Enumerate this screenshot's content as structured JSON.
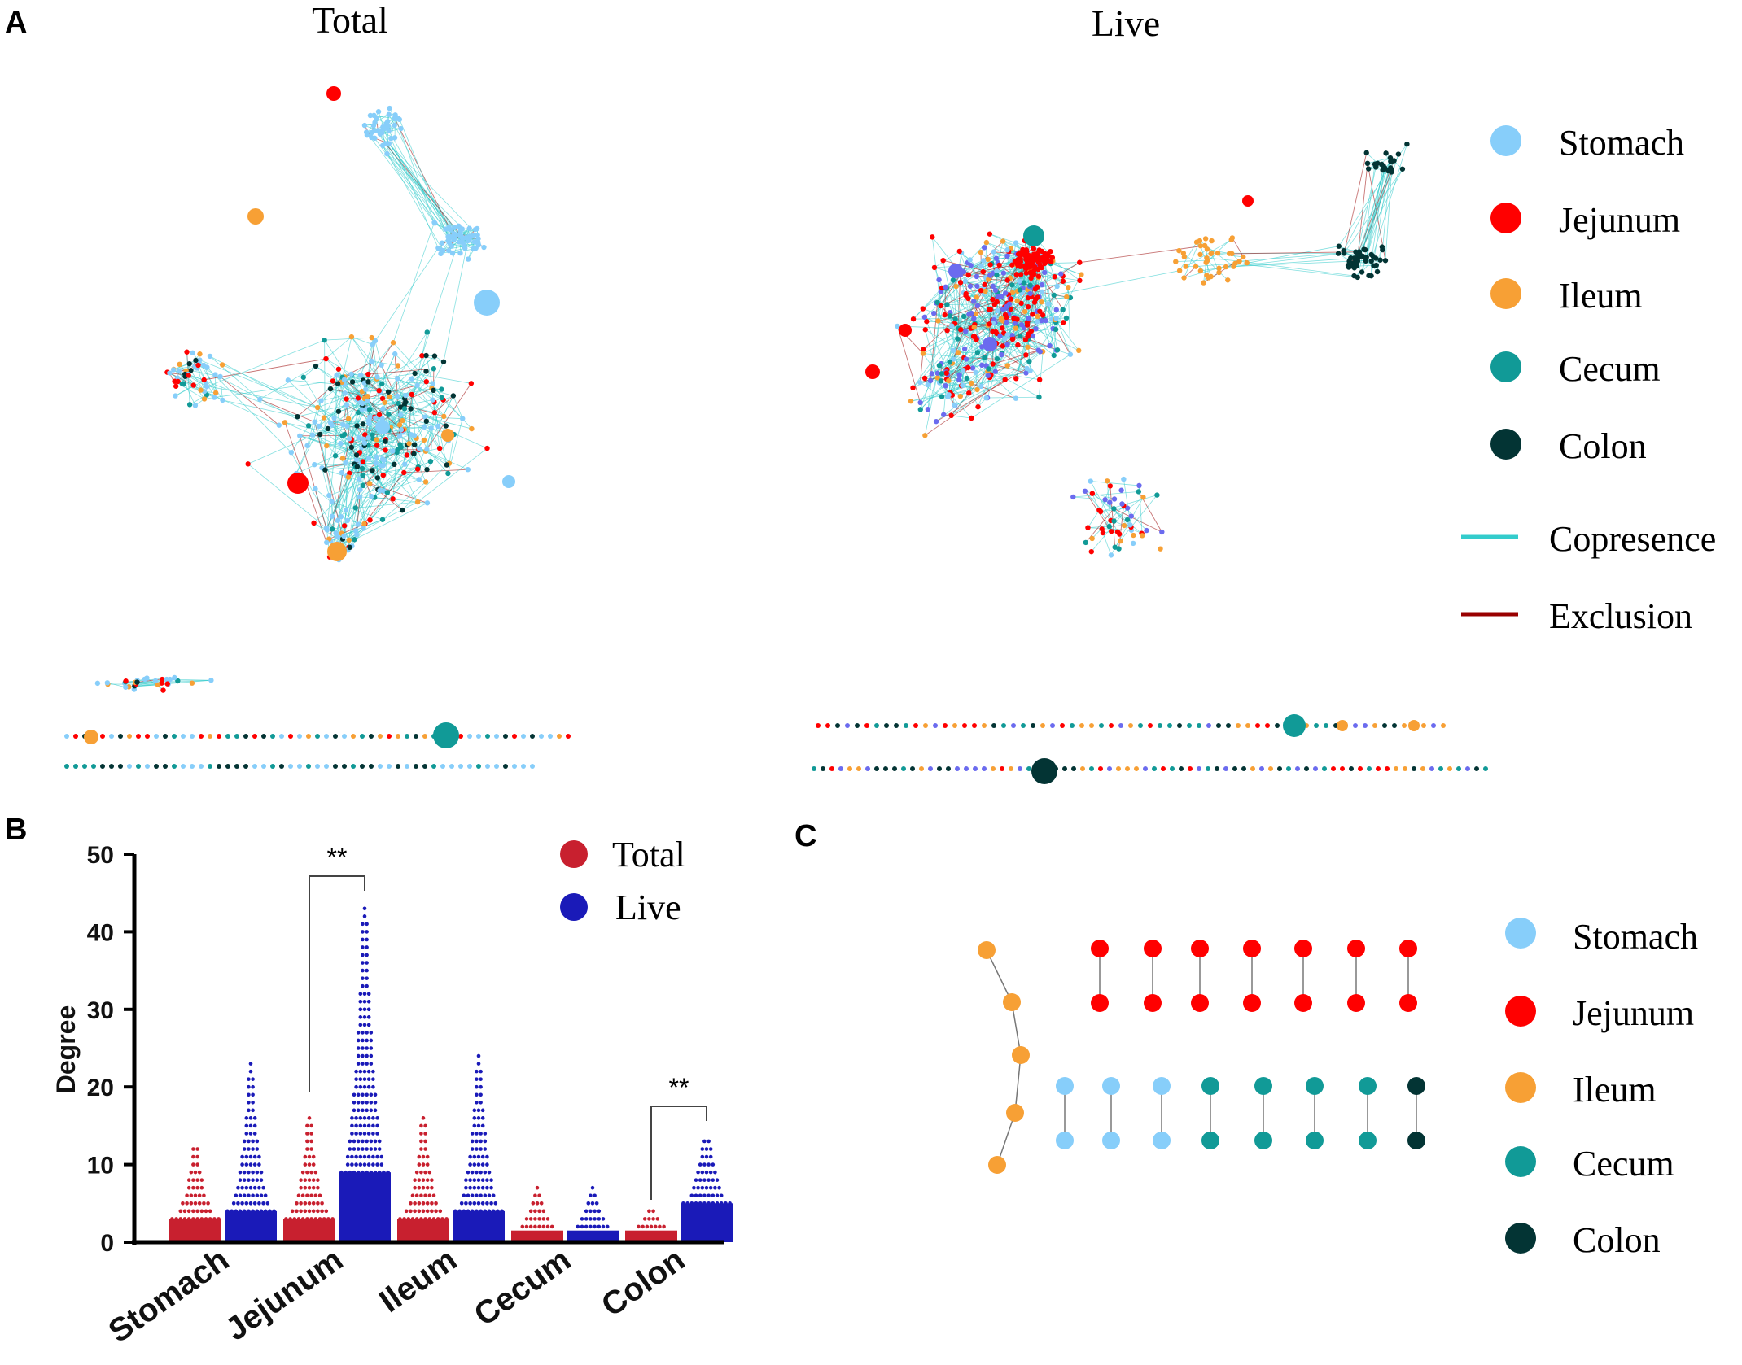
{
  "panels": {
    "a_letter": "A",
    "b_letter": "B",
    "c_letter": "C"
  },
  "network_titles": {
    "total": "Total",
    "live": "Live"
  },
  "colors": {
    "stomach": "#87cefa",
    "jejunum": "#ff0000",
    "ileum": "#f7a035",
    "cecum": "#119a97",
    "colon": "#033434",
    "live_node": "#6b6bef",
    "copresence": "#33cccc",
    "exclusion": "#990000",
    "total_bar": "#c8202f",
    "live_bar": "#1a1ab8",
    "node_edge": "#888888"
  },
  "legend_a": {
    "items": [
      {
        "label": "Stomach",
        "color_key": "stomach"
      },
      {
        "label": "Jejunum",
        "color_key": "jejunum"
      },
      {
        "label": "Ileum",
        "color_key": "ileum"
      },
      {
        "label": "Cecum",
        "color_key": "cecum"
      },
      {
        "label": "Colon",
        "color_key": "colon"
      }
    ],
    "edges": [
      {
        "label": "Copresence",
        "color_key": "copresence"
      },
      {
        "label": "Exclusion",
        "color_key": "exclusion"
      }
    ]
  },
  "legend_c": {
    "items": [
      {
        "label": "Stomach",
        "color_key": "stomach"
      },
      {
        "label": "Jejunum",
        "color_key": "jejunum"
      },
      {
        "label": "Ileum",
        "color_key": "ileum"
      },
      {
        "label": "Cecum",
        "color_key": "cecum"
      },
      {
        "label": "Colon",
        "color_key": "colon"
      }
    ]
  },
  "chart_data": {
    "type": "scatter",
    "subtype": "column scatter with median bars",
    "categories": [
      "Stomach",
      "Jejunum",
      "Ileum",
      "Cecum",
      "Colon"
    ],
    "ylabel": "Degree",
    "xlabel": "",
    "ylim": [
      0,
      50
    ],
    "yticks": [
      0,
      10,
      20,
      30,
      40,
      50
    ],
    "legend_position": "top-right",
    "series": [
      {
        "name": "Total",
        "color_key": "total_bar",
        "median": [
          3,
          3,
          3,
          1.5,
          1.5
        ],
        "max": [
          12,
          16,
          16,
          7,
          4
        ]
      },
      {
        "name": "Live",
        "color_key": "live_bar",
        "median": [
          4,
          9,
          4,
          1.5,
          5
        ],
        "max": [
          23,
          43,
          24,
          7,
          13
        ]
      }
    ],
    "significance": [
      {
        "category": "Jejunum",
        "label": "**"
      },
      {
        "category": "Colon",
        "label": "**"
      }
    ]
  }
}
